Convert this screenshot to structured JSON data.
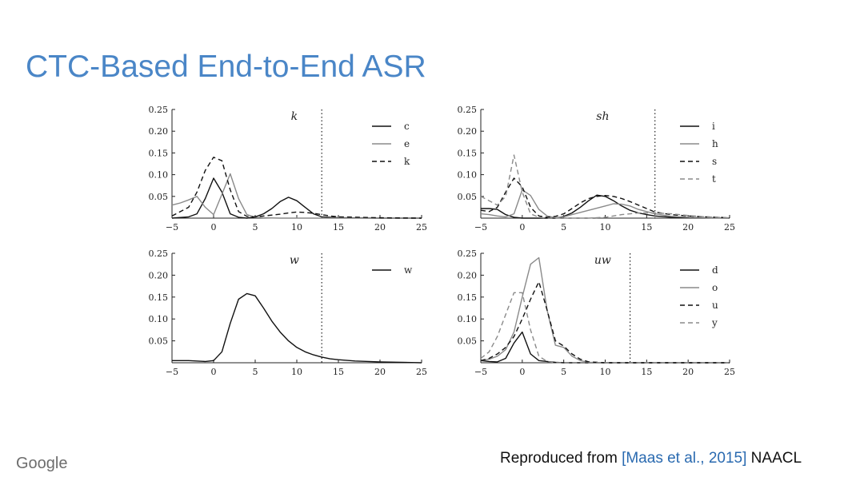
{
  "slide": {
    "title": "CTC-Based End-to-End ASR",
    "logo": "Google",
    "credit_prefix": "Reproduced from ",
    "credit_citation": "[Maas et al., 2015]",
    "credit_suffix": " NAACL"
  },
  "colors": {
    "title": "#4a86c7",
    "citation": "#2a6ab0",
    "series_dark": "#111111",
    "series_gray": "#8a8a8a"
  },
  "chart_data": [
    {
      "type": "line",
      "title": "k",
      "xlim": [
        -5,
        25
      ],
      "ylim": [
        0,
        0.25
      ],
      "xticks": [
        "−5",
        "0",
        "5",
        "10",
        "15",
        "20",
        "25"
      ],
      "yticks": [
        "0.05",
        "0.10",
        "0.15",
        "0.20",
        "0.25"
      ],
      "vline": 13,
      "legend_position": "top-right",
      "series": [
        {
          "name": "c",
          "color": "#111111",
          "dash": "solid",
          "x": [
            -5,
            -3,
            -2,
            -1,
            0,
            1,
            2,
            3,
            4,
            5,
            6,
            7,
            8,
            9,
            10,
            11,
            12,
            13,
            15,
            20,
            25
          ],
          "y": [
            0,
            0.003,
            0.01,
            0.045,
            0.092,
            0.06,
            0.01,
            0.002,
            0,
            0.003,
            0.01,
            0.022,
            0.038,
            0.048,
            0.04,
            0.025,
            0.01,
            0.003,
            0.001,
            0,
            0
          ]
        },
        {
          "name": "e",
          "color": "#8a8a8a",
          "dash": "solid",
          "x": [
            -5,
            -4,
            -3,
            -2,
            -1,
            0,
            1,
            2,
            3,
            4,
            5,
            6,
            8,
            10,
            15,
            25
          ],
          "y": [
            0.03,
            0.035,
            0.042,
            0.05,
            0.025,
            0.008,
            0.055,
            0.102,
            0.045,
            0.008,
            0.002,
            0.001,
            0,
            0,
            0,
            0
          ]
        },
        {
          "name": "k",
          "color": "#111111",
          "dash": "dashed",
          "x": [
            -5,
            -3,
            -2,
            -1,
            0,
            1,
            2,
            3,
            4,
            5,
            6,
            7,
            8,
            9,
            10,
            11,
            12,
            13,
            14,
            15,
            20,
            25
          ],
          "y": [
            0.005,
            0.025,
            0.06,
            0.11,
            0.14,
            0.132,
            0.065,
            0.015,
            0.004,
            0.003,
            0.005,
            0.007,
            0.009,
            0.012,
            0.014,
            0.013,
            0.011,
            0.008,
            0.005,
            0.003,
            0.001,
            0
          ]
        }
      ]
    },
    {
      "type": "line",
      "title": "sh",
      "xlim": [
        -5,
        25
      ],
      "ylim": [
        0,
        0.25
      ],
      "xticks": [
        "−5",
        "0",
        "5",
        "10",
        "15",
        "20",
        "25"
      ],
      "yticks": [
        "0.05",
        "0.10",
        "0.15",
        "0.20",
        "0.25"
      ],
      "vline": 16,
      "legend_position": "top-right",
      "series": [
        {
          "name": "i",
          "color": "#111111",
          "dash": "solid",
          "x": [
            -5,
            -4,
            -3,
            -2,
            -1,
            0,
            1,
            2,
            4,
            5,
            6,
            7,
            8,
            9,
            10,
            11,
            12,
            13,
            14,
            15,
            16,
            18,
            20,
            25
          ],
          "y": [
            0.022,
            0.022,
            0.02,
            0.008,
            0.002,
            0,
            0,
            0,
            0,
            0.004,
            0.012,
            0.025,
            0.04,
            0.053,
            0.05,
            0.04,
            0.028,
            0.018,
            0.012,
            0.008,
            0.005,
            0.002,
            0.001,
            0
          ]
        },
        {
          "name": "h",
          "color": "#8a8a8a",
          "dash": "solid",
          "x": [
            -5,
            -4,
            -3,
            -2,
            -1,
            0,
            1,
            2,
            3,
            4,
            5,
            6,
            8,
            10,
            11,
            12,
            13,
            14,
            16,
            18,
            20,
            25
          ],
          "y": [
            0.01,
            0.008,
            0.005,
            0.003,
            0.01,
            0.065,
            0.052,
            0.02,
            0.005,
            0.001,
            0.003,
            0.008,
            0.018,
            0.028,
            0.033,
            0.032,
            0.028,
            0.02,
            0.01,
            0.004,
            0.002,
            0
          ]
        },
        {
          "name": "s",
          "color": "#111111",
          "dash": "dashed",
          "x": [
            -5,
            -4,
            -3,
            -2,
            -1,
            0,
            1,
            2,
            3,
            4,
            5,
            6,
            7,
            8,
            9,
            10,
            11,
            12,
            13,
            14,
            15,
            16,
            18,
            20,
            22,
            25
          ],
          "y": [
            0.018,
            0.015,
            0.025,
            0.06,
            0.092,
            0.072,
            0.025,
            0.005,
            0.002,
            0.004,
            0.01,
            0.022,
            0.035,
            0.045,
            0.05,
            0.052,
            0.05,
            0.045,
            0.038,
            0.03,
            0.022,
            0.014,
            0.008,
            0.005,
            0.003,
            0.001
          ]
        },
        {
          "name": "t",
          "color": "#8a8a8a",
          "dash": "dashed",
          "x": [
            -5,
            -4,
            -3,
            -2,
            -1,
            0,
            1,
            2,
            3,
            4,
            6,
            8,
            10,
            12,
            14,
            16,
            18,
            20,
            22,
            25
          ],
          "y": [
            0.05,
            0.04,
            0.03,
            0.05,
            0.145,
            0.06,
            0.01,
            0.002,
            0,
            0,
            0,
            0,
            0.002,
            0.008,
            0.012,
            0.012,
            0.01,
            0.006,
            0.003,
            0.001
          ]
        }
      ]
    },
    {
      "type": "line",
      "title": "w",
      "xlim": [
        -5,
        25
      ],
      "ylim": [
        0,
        0.25
      ],
      "xticks": [
        "−5",
        "0",
        "5",
        "10",
        "15",
        "20",
        "25"
      ],
      "yticks": [
        "0.05",
        "0.10",
        "0.15",
        "0.20",
        "0.25"
      ],
      "vline": 13,
      "legend_position": "top-right",
      "series": [
        {
          "name": "w",
          "color": "#111111",
          "dash": "solid",
          "x": [
            -5,
            -3,
            -1,
            0,
            1,
            2,
            3,
            4,
            5,
            6,
            7,
            8,
            9,
            10,
            11,
            12,
            13,
            14,
            15,
            17,
            20,
            25
          ],
          "y": [
            0.005,
            0.005,
            0.003,
            0.005,
            0.025,
            0.09,
            0.145,
            0.158,
            0.153,
            0.125,
            0.095,
            0.07,
            0.05,
            0.035,
            0.025,
            0.018,
            0.013,
            0.009,
            0.007,
            0.004,
            0.002,
            0
          ]
        }
      ]
    },
    {
      "type": "line",
      "title": "uw",
      "xlim": [
        -5,
        25
      ],
      "ylim": [
        0,
        0.25
      ],
      "xticks": [
        "−5",
        "0",
        "5",
        "10",
        "15",
        "20",
        "25"
      ],
      "yticks": [
        "0.05",
        "0.10",
        "0.15",
        "0.20",
        "0.25"
      ],
      "vline": 13,
      "legend_position": "top-right",
      "series": [
        {
          "name": "d",
          "color": "#111111",
          "dash": "solid",
          "x": [
            -5,
            -4,
            -3,
            -2,
            -1,
            0,
            1,
            2,
            3,
            4,
            5,
            6,
            8,
            10,
            25
          ],
          "y": [
            0.005,
            0.003,
            0.002,
            0.01,
            0.045,
            0.07,
            0.02,
            0.005,
            0.003,
            0.001,
            0,
            0,
            0,
            0,
            0
          ]
        },
        {
          "name": "o",
          "color": "#8a8a8a",
          "dash": "solid",
          "x": [
            -5,
            -4,
            -3,
            -2,
            -1,
            0,
            1,
            2,
            3,
            4,
            5,
            6,
            7,
            8,
            10,
            25
          ],
          "y": [
            0.005,
            0.008,
            0.015,
            0.03,
            0.07,
            0.15,
            0.225,
            0.24,
            0.12,
            0.04,
            0.035,
            0.015,
            0.005,
            0.001,
            0,
            0
          ]
        },
        {
          "name": "u",
          "color": "#111111",
          "dash": "dashed",
          "x": [
            -5,
            -4,
            -3,
            -2,
            -1,
            0,
            1,
            2,
            3,
            4,
            5,
            6,
            7,
            8,
            10,
            25
          ],
          "y": [
            0.005,
            0.01,
            0.02,
            0.035,
            0.06,
            0.1,
            0.145,
            0.185,
            0.12,
            0.05,
            0.038,
            0.02,
            0.008,
            0.002,
            0,
            0
          ]
        },
        {
          "name": "y",
          "color": "#8a8a8a",
          "dash": "dashed",
          "x": [
            -5,
            -4,
            -3,
            -2,
            -1,
            0,
            1,
            2,
            3,
            4,
            6,
            25
          ],
          "y": [
            0.01,
            0.025,
            0.06,
            0.11,
            0.16,
            0.16,
            0.075,
            0.015,
            0.003,
            0,
            0,
            0
          ]
        }
      ]
    }
  ]
}
